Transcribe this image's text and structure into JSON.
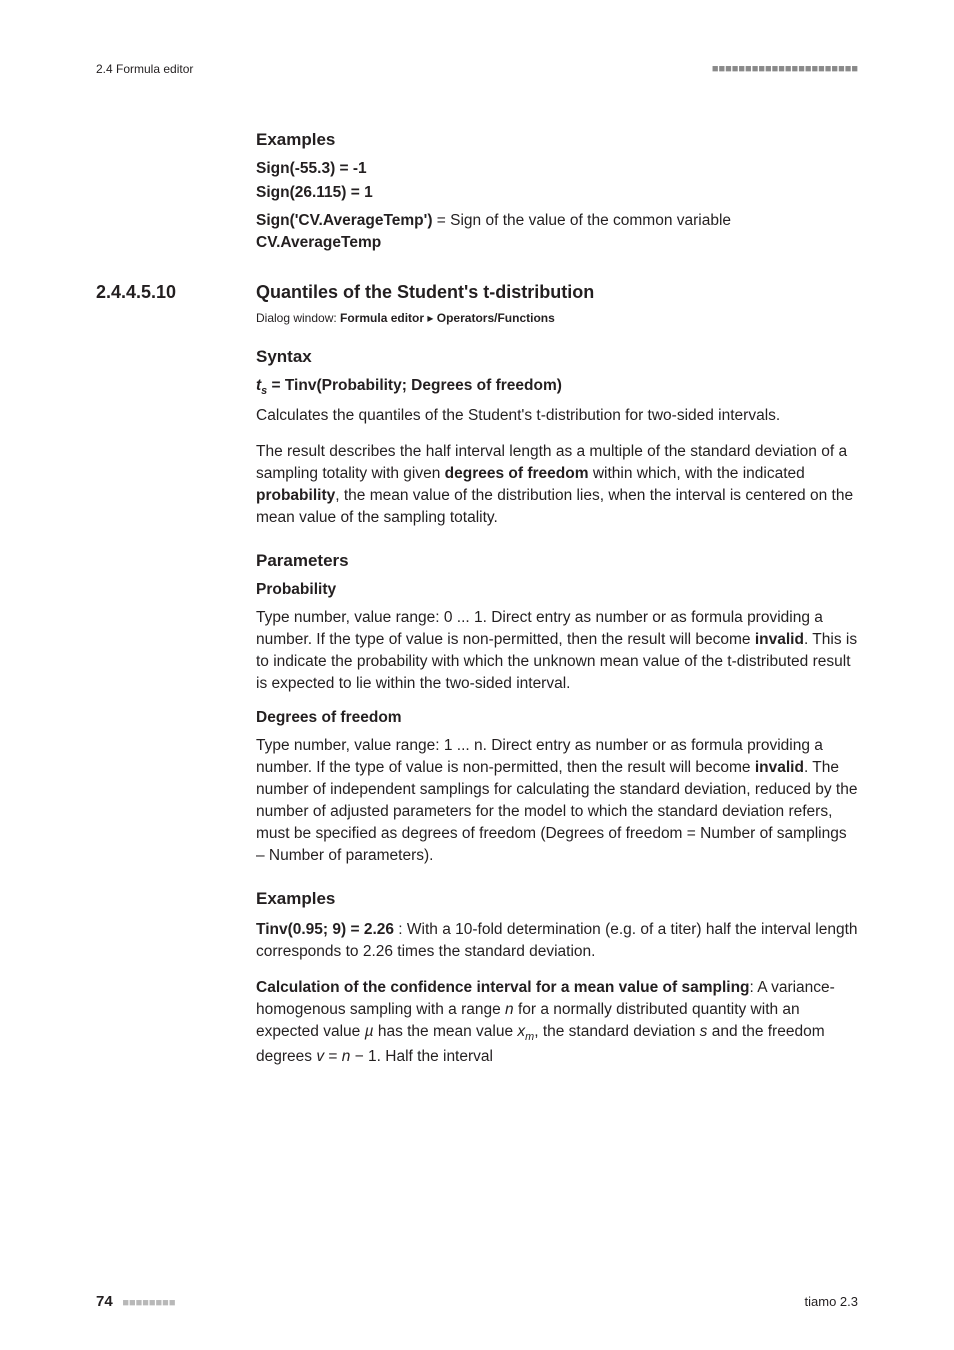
{
  "header": {
    "left": "2.4 Formula editor",
    "right_dots": "■■■■■■■■■■■■■■■■■■■■■■"
  },
  "examples1": {
    "heading": "Examples",
    "line1": "Sign(-55.3) = -1",
    "line2": "Sign(26.115) = 1",
    "line3_bold": "Sign('CV.AverageTemp')",
    "line3_rest": " = Sign of the value of the common variable ",
    "line3_bold2": "CV.AverageTemp"
  },
  "section": {
    "number": "2.4.4.5.10",
    "title": "Quantiles of the Student's t-distribution",
    "dialog_prefix": "Dialog window: ",
    "dialog_bold1": "Formula editor",
    "dialog_sep": " ▸ ",
    "dialog_bold2": "Operators/Functions"
  },
  "syntax": {
    "heading": "Syntax",
    "formula_prefix_it": "t",
    "formula_sub_it": "s",
    "formula_rest": " = Tinv(Probability; Degrees of freedom)",
    "para1": "Calculates the quantiles of the Student's t-distribution for two-sided intervals.",
    "para2_a": "The result describes the half interval length as a multiple of the standard deviation of a sampling totality with given ",
    "para2_b": "degrees of freedom",
    "para2_c": " within which, with the indicated ",
    "para2_d": "probability",
    "para2_e": ", the mean value of the distribution lies, when the interval is centered on the mean value of the sampling totality."
  },
  "parameters": {
    "heading": "Parameters",
    "prob_label": "Probability",
    "prob_text_a": "Type number, value range: 0 ... 1. Direct entry as number or as formula providing a number. If the type of value is non-permitted, then the result will become ",
    "prob_text_b": "invalid",
    "prob_text_c": ". This is to indicate the probability with which the unknown mean value of the t-distributed result is expected to lie within the two-sided interval.",
    "dof_label": "Degrees of freedom",
    "dof_text_a": "Type number, value range: 1 ... n. Direct entry as number or as formula providing a number. If the type of value is non-permitted, then the result will become ",
    "dof_text_b": "invalid",
    "dof_text_c": ". The number of independent samplings for calculating the standard deviation, reduced by the number of adjusted parameters for the model to which the standard deviation refers, must be specified as degrees of freedom (Degrees of freedom = Number of samplings – Number of parameters)."
  },
  "examples2": {
    "heading": "Examples",
    "ex1_bold": "Tinv(0.95; 9) = 2.26",
    "ex1_rest": " : With a 10-fold determination (e.g. of a titer) half the interval length corresponds to 2.26 times the standard deviation.",
    "ex2_bold": "Calculation of the confidence interval for a mean value of sampling",
    "ex2_a": ": A variance-homogenous sampling with a range ",
    "ex2_n": "n",
    "ex2_b": " for a normally distributed quantity with an expected value ",
    "ex2_mu": "µ",
    "ex2_c": " has the mean value ",
    "ex2_xm_x": "x",
    "ex2_xm_m": "m",
    "ex2_d": ", the standard deviation ",
    "ex2_s": "s",
    "ex2_e": " and the freedom degrees ",
    "ex2_v": "v",
    "ex2_f": " = ",
    "ex2_n2": "n",
    "ex2_g": " − 1. Half the interval"
  },
  "footer": {
    "page": "74",
    "dots": "■■■■■■■■",
    "right": "tiamo 2.3"
  }
}
